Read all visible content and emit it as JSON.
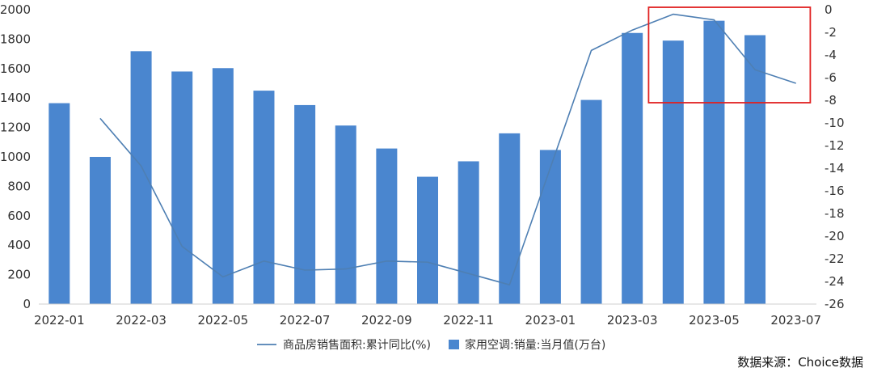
{
  "chart_data": {
    "type": "bar",
    "title": "",
    "x": [
      "2022-01",
      "2022-02",
      "2022-03",
      "2022-04",
      "2022-05",
      "2022-06",
      "2022-07",
      "2022-08",
      "2022-09",
      "2022-10",
      "2022-11",
      "2022-12",
      "2023-01",
      "2023-02",
      "2023-03",
      "2023-04",
      "2023-05",
      "2023-06",
      "2023-07"
    ],
    "x_tick_labels": [
      "2022-01",
      "2022-03",
      "2022-05",
      "2022-07",
      "2022-09",
      "2022-11",
      "2023-01",
      "2023-03",
      "2023-05",
      "2023-07"
    ],
    "series": [
      {
        "name": "家用空调:销量:当月值(万台)",
        "type": "bar",
        "axis": "left",
        "color": "#4a86cf",
        "values": [
          1365,
          1000,
          1718,
          1580,
          1603,
          1450,
          1352,
          1213,
          1057,
          865,
          970,
          1160,
          1047,
          1387,
          1842,
          1790,
          1925,
          1827,
          null
        ]
      },
      {
        "name": "商品房销售面积:累计同比(%)",
        "type": "line",
        "axis": "right",
        "color": "#4e7fb3",
        "values": [
          null,
          -9.6,
          -13.8,
          -20.9,
          -23.6,
          -22.2,
          -23.0,
          -22.9,
          -22.2,
          -22.3,
          -23.3,
          -24.3,
          null,
          -3.6,
          -1.8,
          -0.4,
          -0.9,
          -5.3,
          -6.5
        ]
      }
    ],
    "y_left": {
      "min": 0,
      "max": 2000,
      "ticks": [
        "0",
        "200",
        "400",
        "600",
        "800",
        "1000",
        "1200",
        "1400",
        "1600",
        "1800",
        "2000"
      ]
    },
    "y_right": {
      "min": -26,
      "max": 0,
      "ticks": [
        "0",
        "-2",
        "-4",
        "-6",
        "-8",
        "-10",
        "-12",
        "-14",
        "-16",
        "-18",
        "-20",
        "-22",
        "-24",
        "-26"
      ]
    },
    "legend": {
      "position": "bottom",
      "items": [
        "商品房销售面积:累计同比(%)",
        "家用空调:销量:当月值(万台)"
      ]
    },
    "annotation": {
      "type": "highlight-box",
      "from": "2023-04",
      "to": "2023-07",
      "color": "#e02020"
    },
    "source": "数据来源：Choice数据",
    "grid": false
  }
}
